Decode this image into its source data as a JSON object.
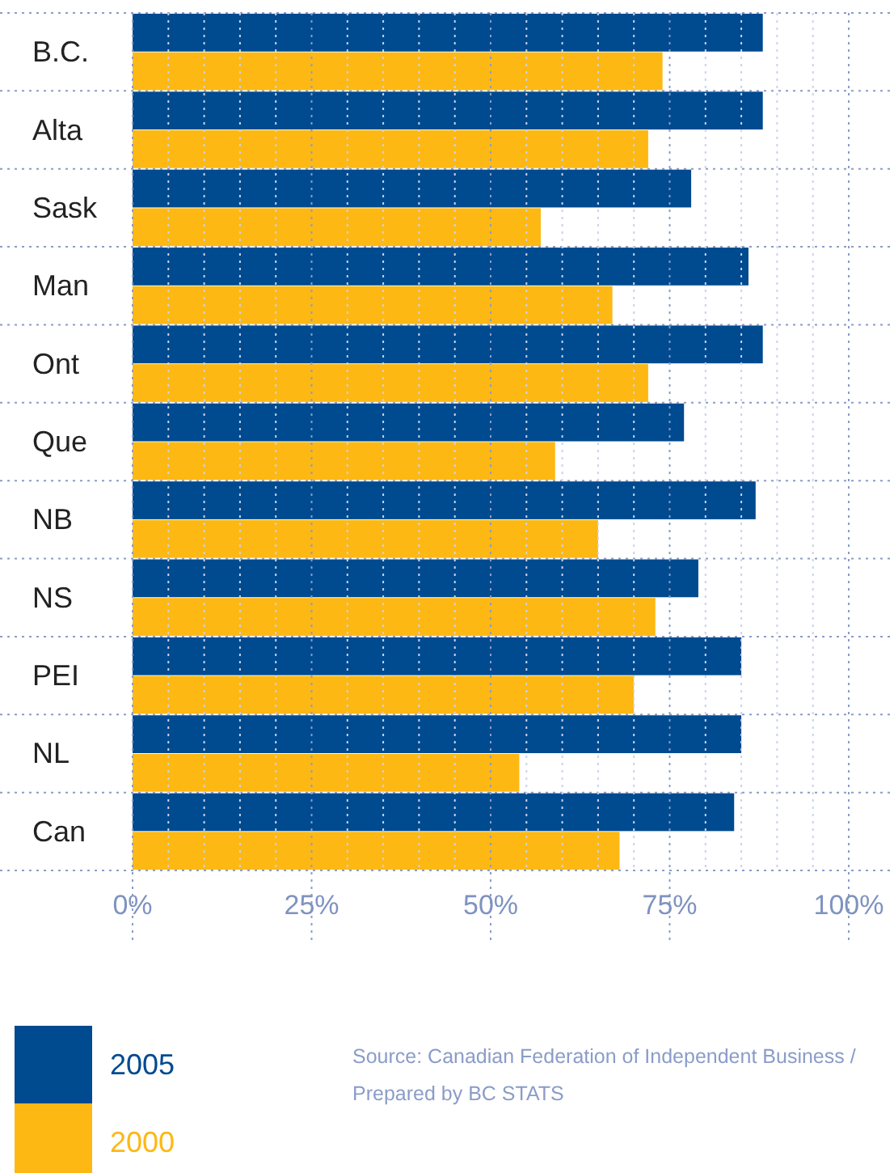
{
  "chart_data": {
    "type": "bar",
    "orientation": "horizontal",
    "categories": [
      "B.C.",
      "Alta",
      "Sask",
      "Man",
      "Ont",
      "Que",
      "NB",
      "NS",
      "PEI",
      "NL",
      "Can"
    ],
    "series": [
      {
        "name": "2005",
        "color": "#004a8f",
        "values": [
          88,
          88,
          78,
          86,
          88,
          77,
          87,
          79,
          85,
          85,
          84
        ]
      },
      {
        "name": "2000",
        "color": "#fdb813",
        "values": [
          74,
          72,
          57,
          67,
          72,
          59,
          65,
          73,
          70,
          54,
          68
        ]
      }
    ],
    "xlim": [
      0,
      100
    ],
    "xticks": [
      {
        "value": 0,
        "label": "0%"
      },
      {
        "value": 5,
        "label": null
      },
      {
        "value": 10,
        "label": null
      },
      {
        "value": 15,
        "label": null
      },
      {
        "value": 20,
        "label": null
      },
      {
        "value": 25,
        "label": "25%"
      },
      {
        "value": 30,
        "label": null
      },
      {
        "value": 35,
        "label": null
      },
      {
        "value": 40,
        "label": null
      },
      {
        "value": 45,
        "label": null
      },
      {
        "value": 50,
        "label": "50%"
      },
      {
        "value": 55,
        "label": null
      },
      {
        "value": 60,
        "label": null
      },
      {
        "value": 65,
        "label": null
      },
      {
        "value": 70,
        "label": null
      },
      {
        "value": 75,
        "label": "75%"
      },
      {
        "value": 80,
        "label": null
      },
      {
        "value": 85,
        "label": null
      },
      {
        "value": 90,
        "label": null
      },
      {
        "value": 95,
        "label": null
      },
      {
        "value": 100,
        "label": "100%"
      }
    ],
    "grid": true,
    "legend": "bottom left",
    "annotations": [
      "Source: Canadian Federation of Independent Business / Prepared by BC STATS"
    ]
  }
}
